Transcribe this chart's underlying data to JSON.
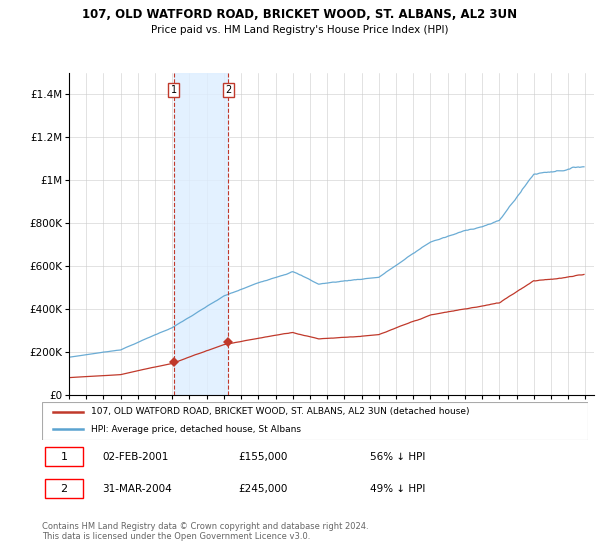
{
  "title": "107, OLD WATFORD ROAD, BRICKET WOOD, ST. ALBANS, AL2 3UN",
  "subtitle": "Price paid vs. HM Land Registry's House Price Index (HPI)",
  "legend_line1": "107, OLD WATFORD ROAD, BRICKET WOOD, ST. ALBANS, AL2 3UN (detached house)",
  "legend_line2": "HPI: Average price, detached house, St Albans",
  "transaction1_label": "1",
  "transaction1_date": "02-FEB-2001",
  "transaction1_price": "£155,000",
  "transaction1_hpi": "56% ↓ HPI",
  "transaction1_year": 2001.09,
  "transaction1_value": 155000,
  "transaction2_label": "2",
  "transaction2_date": "31-MAR-2004",
  "transaction2_price": "£245,000",
  "transaction2_hpi": "49% ↓ HPI",
  "transaction2_year": 2004.25,
  "transaction2_value": 245000,
  "hpi_color": "#5ba3d0",
  "price_color": "#c0392b",
  "marker_color": "#c0392b",
  "vline_color": "#c0392b",
  "shade_color": "#ddeeff",
  "footer": "Contains HM Land Registry data © Crown copyright and database right 2024.\nThis data is licensed under the Open Government Licence v3.0.",
  "ylim": [
    0,
    1500000
  ],
  "yticks": [
    0,
    200000,
    400000,
    600000,
    800000,
    1000000,
    1200000,
    1400000
  ],
  "ytick_labels": [
    "£0",
    "£200K",
    "£400K",
    "£600K",
    "£800K",
    "£1M",
    "£1.2M",
    "£1.4M"
  ],
  "xmin": 1995,
  "xmax": 2025.5
}
